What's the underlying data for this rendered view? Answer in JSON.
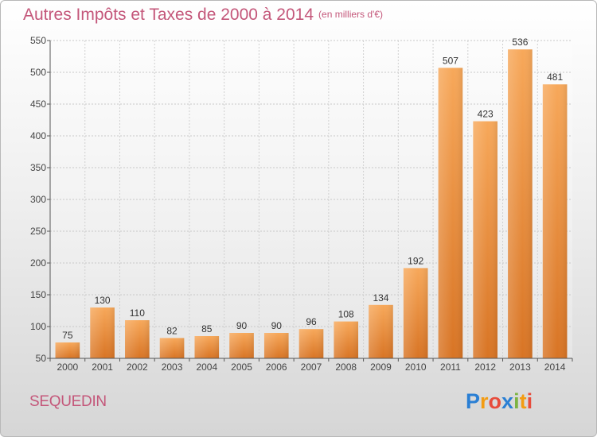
{
  "title": "Autres Impôts et Taxes de 2000 à 2014",
  "unit_note": "(en milliers d'€)",
  "city": "SEQUEDIN",
  "logo": {
    "text": "Proxiti",
    "letters": [
      "P",
      "r",
      "o",
      "x",
      "i",
      "t",
      "i"
    ],
    "colors": [
      "#2a7fd4",
      "#f39c12",
      "#e74c3c",
      "#2a7fd4",
      "#7cb342",
      "#f39c12",
      "#e74c3c"
    ]
  },
  "colors": {
    "bar_light": "#f7a85a",
    "bar_dark": "#d87424",
    "title": "#c4577a"
  },
  "chart_data": {
    "type": "bar",
    "categories": [
      "2000",
      "2001",
      "2002",
      "2003",
      "2004",
      "2005",
      "2006",
      "2007",
      "2008",
      "2009",
      "2010",
      "2011",
      "2012",
      "2013",
      "2014"
    ],
    "values": [
      75,
      130,
      110,
      82,
      85,
      90,
      90,
      96,
      108,
      134,
      192,
      507,
      423,
      536,
      481
    ],
    "ylim": [
      50,
      550
    ],
    "yticks": [
      50,
      100,
      150,
      200,
      250,
      300,
      350,
      400,
      450,
      500,
      550
    ],
    "grid": true,
    "title": "Autres Impôts et Taxes de 2000 à 2014",
    "xlabel": "",
    "ylabel": ""
  }
}
